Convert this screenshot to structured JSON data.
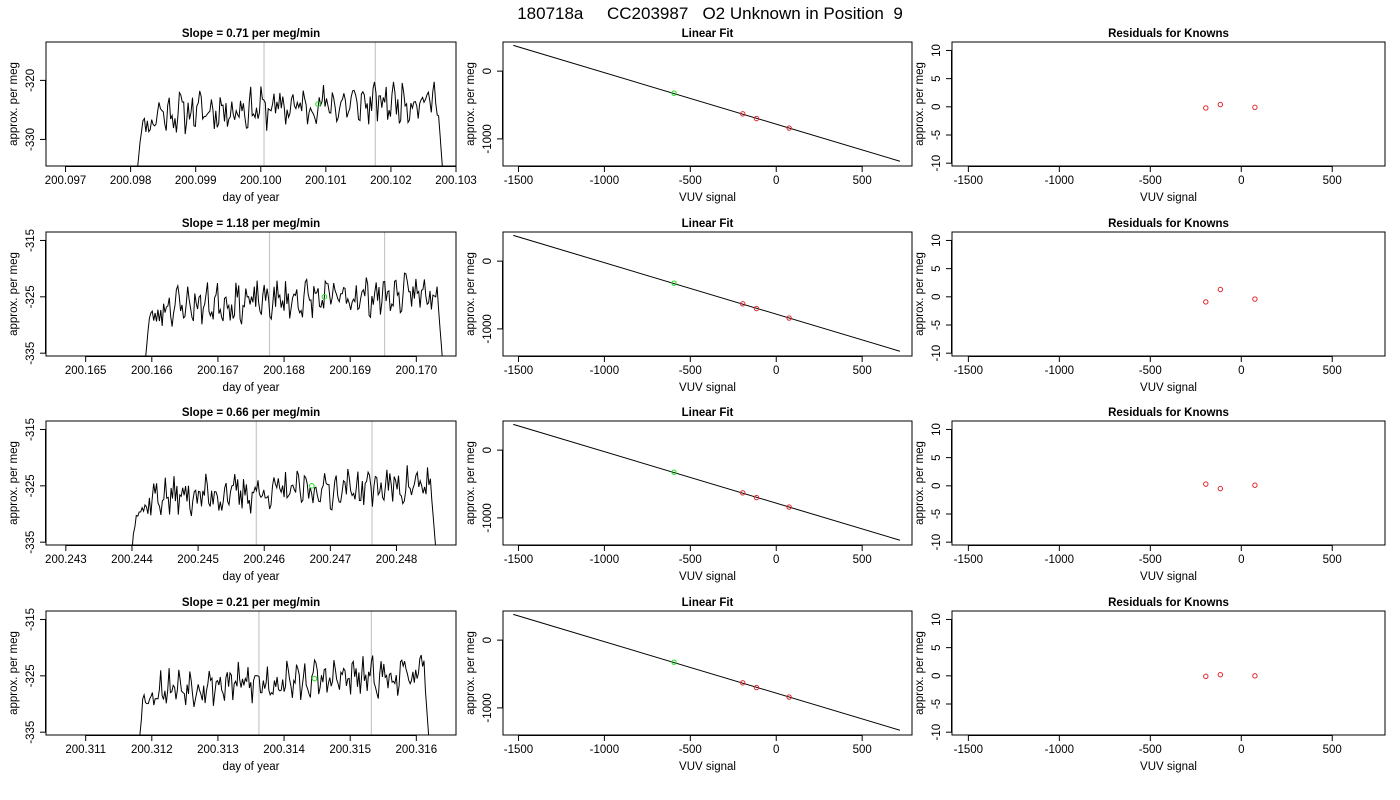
{
  "figure_title": "180718a     CC203987   O2 Unknown in Position  9",
  "colors": {
    "series": "#000000",
    "known_points": "#e0262e",
    "unknown_point": "#22dd22",
    "marker_lines": "#c8c8c8"
  },
  "chart_data": [
    {
      "type": "line",
      "row": 1,
      "title": "Slope =  0.71  per meg/min",
      "xlabel": "day of year",
      "ylabel": "approx. per meg",
      "xlim": [
        200.0967,
        200.103
      ],
      "ylim": [
        -334.5,
        -313.5
      ],
      "xticks": [
        200.097,
        200.098,
        200.099,
        200.1,
        200.101,
        200.102,
        200.103
      ],
      "xtick_labels": [
        "200.097",
        "200.098",
        "200.099",
        "200.100",
        "200.101",
        "200.102",
        "200.103"
      ],
      "yticks": [
        -320,
        -330
      ],
      "ytick_labels": [
        "-320",
        "-330"
      ],
      "vertical_lines": [
        200.10005,
        200.10176
      ],
      "series_start": 200.0981,
      "series_end": 200.1028,
      "level": -324.5,
      "edge_low": -335,
      "unknown_point": {
        "x": 200.10088,
        "y": -324.0
      },
      "seed": 11
    },
    {
      "type": "scatter",
      "row": 1,
      "title": "Linear Fit",
      "xlabel": "VUV signal",
      "ylabel": "approx. per meg",
      "xlim": [
        -1590,
        790
      ],
      "ylim": [
        -1400,
        430
      ],
      "xticks": [
        -1500,
        -1000,
        -500,
        0,
        500
      ],
      "xtick_labels": [
        "-1500",
        "-1000",
        "-500",
        "0",
        "500"
      ],
      "yticks": [
        0,
        -1000
      ],
      "ytick_labels": [
        "0",
        "-1000"
      ],
      "fit_line": {
        "x": [
          -1530,
          720
        ],
        "y": [
          380,
          -1330
        ]
      },
      "knowns": [
        {
          "x": -195,
          "y": -630
        },
        {
          "x": -115,
          "y": -700
        },
        {
          "x": 75,
          "y": -840
        }
      ],
      "unknown_point": {
        "x": -595,
        "y": -325
      }
    },
    {
      "type": "scatter",
      "row": 1,
      "title": "Residuals for Knowns",
      "xlabel": "VUV signal",
      "ylabel": "approx. per meg",
      "xlim": [
        -1590,
        790
      ],
      "ylim": [
        -10.5,
        11.5
      ],
      "xticks": [
        -1500,
        -1000,
        -500,
        0,
        500
      ],
      "xtick_labels": [
        "-1500",
        "-1000",
        "-500",
        "0",
        "500"
      ],
      "yticks": [
        10,
        5,
        0,
        -5,
        -10
      ],
      "ytick_labels": [
        "10",
        "5",
        "0",
        "-5",
        "-10"
      ],
      "residuals": [
        {
          "x": -195,
          "y": -0.2
        },
        {
          "x": -115,
          "y": 0.4
        },
        {
          "x": 75,
          "y": -0.1
        }
      ]
    },
    {
      "type": "line",
      "row": 2,
      "title": "Slope =  1.18  per meg/min",
      "xlabel": "day of year",
      "ylabel": "approx. per meg",
      "xlim": [
        200.1644,
        200.1706
      ],
      "ylim": [
        -335.5,
        -313.5
      ],
      "xticks": [
        200.165,
        200.166,
        200.167,
        200.168,
        200.169,
        200.17
      ],
      "xtick_labels": [
        "200.165",
        "200.166",
        "200.167",
        "200.168",
        "200.169",
        "200.170"
      ],
      "yticks": [
        -315,
        -325,
        -335
      ],
      "ytick_labels": [
        "-315",
        "-325",
        "-335"
      ],
      "vertical_lines": [
        200.16778,
        200.16952
      ],
      "series_start": 200.1659,
      "series_end": 200.1704,
      "level": -325.5,
      "edge_low": -336,
      "unknown_point": {
        "x": 200.16861,
        "y": -325.0
      },
      "seed": 23
    },
    {
      "type": "scatter",
      "row": 2,
      "title": "Linear Fit",
      "xlabel": "VUV signal",
      "ylabel": "approx. per meg",
      "xlim": [
        -1590,
        790
      ],
      "ylim": [
        -1400,
        430
      ],
      "xticks": [
        -1500,
        -1000,
        -500,
        0,
        500
      ],
      "xtick_labels": [
        "-1500",
        "-1000",
        "-500",
        "0",
        "500"
      ],
      "yticks": [
        0,
        -1000
      ],
      "ytick_labels": [
        "0",
        "-1000"
      ],
      "fit_line": {
        "x": [
          -1530,
          720
        ],
        "y": [
          380,
          -1330
        ]
      },
      "knowns": [
        {
          "x": -195,
          "y": -630
        },
        {
          "x": -115,
          "y": -700
        },
        {
          "x": 75,
          "y": -840
        }
      ],
      "unknown_point": {
        "x": -595,
        "y": -325
      }
    },
    {
      "type": "scatter",
      "row": 2,
      "title": "Residuals for Knowns",
      "xlabel": "VUV signal",
      "ylabel": "approx. per meg",
      "xlim": [
        -1590,
        790
      ],
      "ylim": [
        -10.5,
        11.5
      ],
      "xticks": [
        -1500,
        -1000,
        -500,
        0,
        500
      ],
      "xtick_labels": [
        "-1500",
        "-1000",
        "-500",
        "0",
        "500"
      ],
      "yticks": [
        10,
        5,
        0,
        -5,
        -10
      ],
      "ytick_labels": [
        "10",
        "5",
        "0",
        "-5",
        "-10"
      ],
      "residuals": [
        {
          "x": -195,
          "y": -0.9
        },
        {
          "x": -115,
          "y": 1.3
        },
        {
          "x": 75,
          "y": -0.4
        }
      ]
    },
    {
      "type": "line",
      "row": 3,
      "title": "Slope =  0.66  per meg/min",
      "xlabel": "day of year",
      "ylabel": "approx. per meg",
      "xlim": [
        200.2427,
        200.2489
      ],
      "ylim": [
        -335.5,
        -313.5
      ],
      "xticks": [
        200.243,
        200.244,
        200.245,
        200.246,
        200.247,
        200.248
      ],
      "xtick_labels": [
        "200.243",
        "200.244",
        "200.245",
        "200.246",
        "200.247",
        "200.248"
      ],
      "yticks": [
        -315,
        -325,
        -335
      ],
      "ytick_labels": [
        "-315",
        "-325",
        "-335"
      ],
      "vertical_lines": [
        200.24588,
        200.24763
      ],
      "series_start": 200.244,
      "series_end": 200.2486,
      "level": -326.0,
      "edge_low": -336,
      "unknown_point": {
        "x": 200.24672,
        "y": -325.0
      },
      "seed": 37
    },
    {
      "type": "scatter",
      "row": 3,
      "title": "Linear Fit",
      "xlabel": "VUV signal",
      "ylabel": "approx. per meg",
      "xlim": [
        -1590,
        790
      ],
      "ylim": [
        -1400,
        430
      ],
      "xticks": [
        -1500,
        -1000,
        -500,
        0,
        500
      ],
      "xtick_labels": [
        "-1500",
        "-1000",
        "-500",
        "0",
        "500"
      ],
      "yticks": [
        0,
        -1000
      ],
      "ytick_labels": [
        "0",
        "-1000"
      ],
      "fit_line": {
        "x": [
          -1530,
          720
        ],
        "y": [
          380,
          -1330
        ]
      },
      "knowns": [
        {
          "x": -195,
          "y": -630
        },
        {
          "x": -115,
          "y": -700
        },
        {
          "x": 75,
          "y": -840
        }
      ],
      "unknown_point": {
        "x": -595,
        "y": -325
      }
    },
    {
      "type": "scatter",
      "row": 3,
      "title": "Residuals for Knowns",
      "xlabel": "VUV signal",
      "ylabel": "approx. per meg",
      "xlim": [
        -1590,
        790
      ],
      "ylim": [
        -10.5,
        11.5
      ],
      "xticks": [
        -1500,
        -1000,
        -500,
        0,
        500
      ],
      "xtick_labels": [
        "-1500",
        "-1000",
        "-500",
        "0",
        "500"
      ],
      "yticks": [
        10,
        5,
        0,
        -5,
        -10
      ],
      "ytick_labels": [
        "10",
        "5",
        "0",
        "-5",
        "-10"
      ],
      "residuals": [
        {
          "x": -195,
          "y": 0.3
        },
        {
          "x": -115,
          "y": -0.5
        },
        {
          "x": 75,
          "y": 0.1
        }
      ]
    },
    {
      "type": "line",
      "row": 4,
      "title": "Slope =  0.21  per meg/min",
      "xlabel": "day of year",
      "ylabel": "approx. per meg",
      "xlim": [
        200.3104,
        200.3166
      ],
      "ylim": [
        -335.5,
        -313.5
      ],
      "xticks": [
        200.311,
        200.312,
        200.313,
        200.314,
        200.315,
        200.316
      ],
      "xtick_labels": [
        "200.311",
        "200.312",
        "200.313",
        "200.314",
        "200.315",
        "200.316"
      ],
      "yticks": [
        -315,
        -325,
        -335
      ],
      "ytick_labels": [
        "-315",
        "-325",
        "-335"
      ],
      "vertical_lines": [
        200.31362,
        200.31532
      ],
      "series_start": 200.3118,
      "series_end": 200.3162,
      "level": -326.0,
      "edge_low": -337,
      "unknown_point": {
        "x": 200.31446,
        "y": -325.5
      },
      "seed": 53
    },
    {
      "type": "scatter",
      "row": 4,
      "title": "Linear Fit",
      "xlabel": "VUV signal",
      "ylabel": "approx. per meg",
      "xlim": [
        -1590,
        790
      ],
      "ylim": [
        -1400,
        430
      ],
      "xticks": [
        -1500,
        -1000,
        -500,
        0,
        500
      ],
      "xtick_labels": [
        "-1500",
        "-1000",
        "-500",
        "0",
        "500"
      ],
      "yticks": [
        0,
        -1000
      ],
      "ytick_labels": [
        "0",
        "-1000"
      ],
      "fit_line": {
        "x": [
          -1530,
          720
        ],
        "y": [
          380,
          -1330
        ]
      },
      "knowns": [
        {
          "x": -195,
          "y": -630
        },
        {
          "x": -115,
          "y": -700
        },
        {
          "x": 75,
          "y": -840
        }
      ],
      "unknown_point": {
        "x": -595,
        "y": -325
      }
    },
    {
      "type": "scatter",
      "row": 4,
      "title": "Residuals for Knowns",
      "xlabel": "VUV signal",
      "ylabel": "approx. per meg",
      "xlim": [
        -1590,
        790
      ],
      "ylim": [
        -10.5,
        11.5
      ],
      "xticks": [
        -1500,
        -1000,
        -500,
        0,
        500
      ],
      "xtick_labels": [
        "-1500",
        "-1000",
        "-500",
        "0",
        "500"
      ],
      "yticks": [
        10,
        5,
        0,
        -5,
        -10
      ],
      "ytick_labels": [
        "10",
        "5",
        "0",
        "-5",
        "-10"
      ],
      "residuals": [
        {
          "x": -195,
          "y": -0.1
        },
        {
          "x": -115,
          "y": 0.2
        },
        {
          "x": 75,
          "y": 0.0
        }
      ]
    }
  ]
}
